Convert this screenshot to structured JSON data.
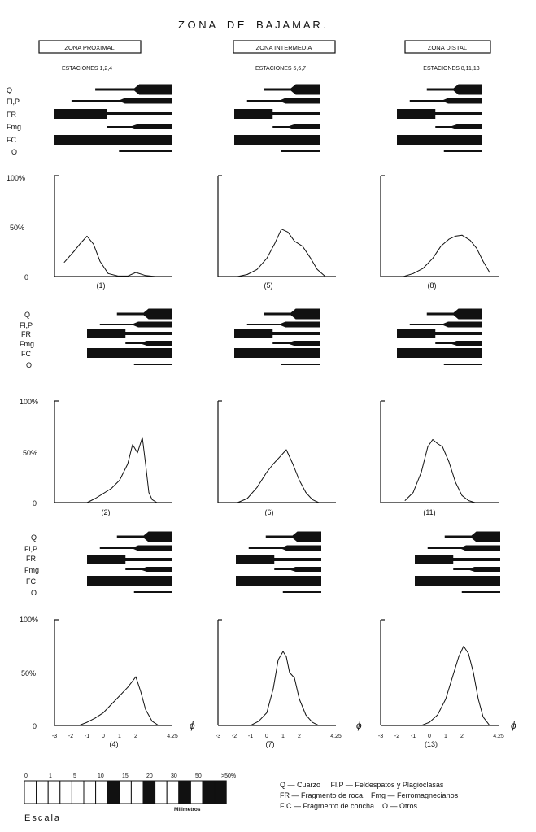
{
  "title": "Z O N A    D E    B A J A M A R .",
  "columns": [
    {
      "zone": "ZONA PROXIMAL",
      "stations": "ESTACIONES 1,2,4"
    },
    {
      "zone": "ZONA INTERMEDIA",
      "stations": "ESTACIONES 5,6,7"
    },
    {
      "zone": "ZONA DISTAL",
      "stations": "ESTACIONES 8,11,13"
    }
  ],
  "component_labels": [
    "Q",
    "Fl,P",
    "FR",
    "Fmg",
    "FC",
    "O"
  ],
  "y_ticks": [
    "100%",
    "50%",
    "0"
  ],
  "x_axis_symbol": "ϕ",
  "x_ticks": [
    "-3",
    "-2",
    "-1",
    "0",
    "1",
    "2",
    "4.25"
  ],
  "chart_data": [
    {
      "type": "line",
      "station": "(1)",
      "x": [
        -2.4,
        -1.8,
        -1.4,
        -1.0,
        -0.6,
        -0.2,
        0.3,
        0.9,
        1.5,
        2.0,
        2.6,
        3.2
      ],
      "y": [
        14,
        25,
        33,
        40,
        32,
        15,
        3,
        0.5,
        0.5,
        4,
        1,
        0
      ],
      "ylim": [
        0,
        100
      ],
      "xlim": [
        -3,
        4.25
      ]
    },
    {
      "type": "line",
      "station": "(5)",
      "x": [
        -1.8,
        -1.2,
        -0.6,
        0.0,
        0.5,
        0.9,
        1.3,
        1.7,
        2.2,
        2.7,
        3.1,
        3.6
      ],
      "y": [
        0,
        2,
        7,
        18,
        33,
        47,
        44,
        35,
        30,
        18,
        7,
        0
      ],
      "ylim": [
        0,
        100
      ],
      "xlim": [
        -3,
        4.25
      ]
    },
    {
      "type": "line",
      "station": "(8)",
      "x": [
        -1.6,
        -1.0,
        -0.4,
        0.2,
        0.7,
        1.2,
        1.6,
        2.0,
        2.5,
        2.9,
        3.3,
        3.7
      ],
      "y": [
        0,
        3,
        8,
        18,
        30,
        37,
        40,
        41,
        36,
        28,
        15,
        4
      ],
      "ylim": [
        0,
        100
      ],
      "xlim": [
        -3,
        4.25
      ]
    },
    {
      "type": "line",
      "station": "(2)",
      "x": [
        -1.0,
        -0.5,
        0.0,
        0.5,
        1.0,
        1.5,
        1.8,
        2.1,
        2.4,
        2.6,
        2.8,
        3.0,
        3.3
      ],
      "y": [
        0,
        4,
        9,
        14,
        22,
        38,
        57,
        49,
        64,
        38,
        10,
        3,
        0
      ],
      "ylim": [
        0,
        100
      ],
      "xlim": [
        -3,
        4.25
      ]
    },
    {
      "type": "line",
      "station": "(6)",
      "x": [
        -1.8,
        -1.2,
        -0.6,
        0.0,
        0.4,
        0.8,
        1.2,
        1.6,
        2.0,
        2.4,
        2.8,
        3.2
      ],
      "y": [
        0,
        4,
        15,
        30,
        38,
        45,
        52,
        38,
        22,
        10,
        3,
        0
      ],
      "ylim": [
        0,
        100
      ],
      "xlim": [
        -3,
        4.25
      ]
    },
    {
      "type": "line",
      "station": "(11)",
      "x": [
        -1.5,
        -1.0,
        -0.5,
        -0.1,
        0.2,
        0.5,
        0.8,
        1.2,
        1.6,
        2.0,
        2.4,
        2.8
      ],
      "y": [
        2,
        10,
        30,
        55,
        62,
        58,
        55,
        40,
        20,
        7,
        2,
        0
      ],
      "ylim": [
        0,
        100
      ],
      "xlim": [
        -3,
        4.25
      ]
    },
    {
      "type": "line",
      "station": "(4)",
      "x": [
        -1.5,
        -1.0,
        -0.5,
        0.0,
        0.5,
        1.0,
        1.5,
        2.0,
        2.3,
        2.6,
        3.0,
        3.4
      ],
      "y": [
        0,
        3,
        7,
        12,
        20,
        28,
        36,
        46,
        32,
        15,
        4,
        0
      ],
      "ylim": [
        0,
        100
      ],
      "xlim": [
        -3,
        4.25
      ]
    },
    {
      "type": "line",
      "station": "(7)",
      "x": [
        -1.0,
        -0.5,
        0.0,
        0.4,
        0.7,
        1.0,
        1.2,
        1.4,
        1.7,
        2.0,
        2.4,
        2.8,
        3.2
      ],
      "y": [
        0,
        4,
        12,
        35,
        62,
        70,
        65,
        50,
        45,
        25,
        10,
        3,
        0
      ],
      "ylim": [
        0,
        100
      ],
      "xlim": [
        -3,
        4.25
      ]
    },
    {
      "type": "line",
      "station": "(13)",
      "x": [
        -0.5,
        0.0,
        0.5,
        1.0,
        1.4,
        1.8,
        2.1,
        2.4,
        2.7,
        3.0,
        3.3,
        3.7
      ],
      "y": [
        0,
        3,
        10,
        25,
        45,
        65,
        75,
        68,
        50,
        25,
        8,
        0
      ],
      "ylim": [
        0,
        100
      ],
      "xlim": [
        -3,
        4.25
      ]
    }
  ],
  "scale": {
    "title": "Escala",
    "unit": "Milimetros",
    "labels": [
      "0",
      "1",
      "5",
      "10",
      "15",
      "20",
      "30",
      "50",
      ">50%"
    ]
  },
  "legend": {
    "line1": "Q — Cuarzo     Fl,P — Feldespatos y Plagioclasas",
    "line2": "FR — Fragmento de roca.   Fmg — Ferromagnecianos",
    "line3": "F C — Fragmento de concha.   O — Otros"
  }
}
